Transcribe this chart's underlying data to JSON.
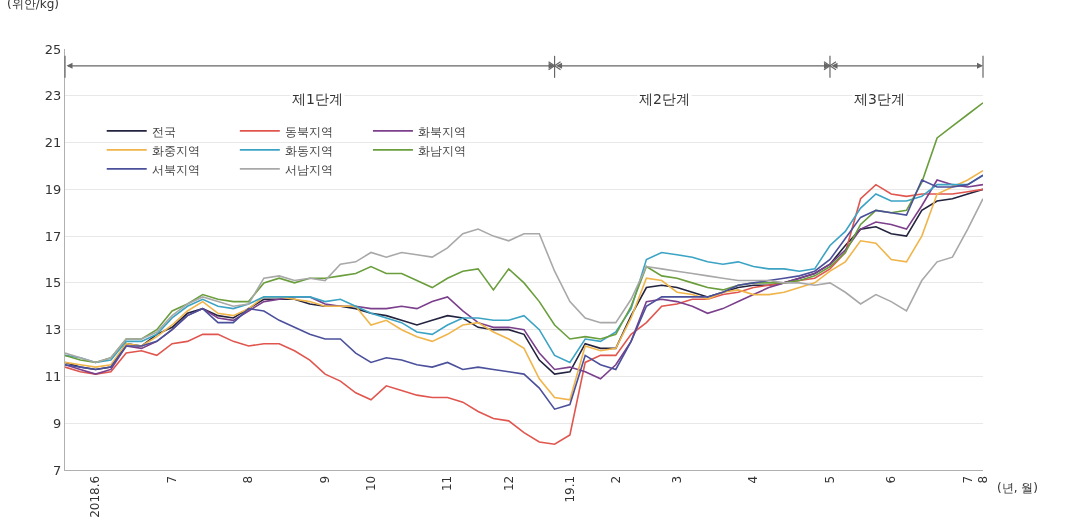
{
  "chart_data": {
    "type": "line",
    "xlabel": "(년, 월)",
    "ylabel": "(위안/kg)",
    "annotations": [
      "제1단계",
      "제2단계",
      "제3단계"
    ],
    "categories": [
      null,
      null,
      "2018.6",
      null,
      null,
      null,
      null,
      "7",
      null,
      null,
      null,
      null,
      "8",
      null,
      null,
      null,
      null,
      "9",
      null,
      null,
      "10",
      null,
      null,
      null,
      null,
      "11",
      null,
      null,
      null,
      "12",
      null,
      null,
      null,
      "19.1",
      null,
      null,
      "2",
      null,
      null,
      null,
      "3",
      null,
      null,
      null,
      null,
      "4",
      null,
      null,
      null,
      null,
      "5",
      null,
      null,
      null,
      "6",
      null,
      null,
      null,
      null,
      "7",
      "8"
    ],
    "series": [
      {
        "name": "전국",
        "color": "#23233f",
        "values": [
          11.6,
          11.4,
          11.3,
          11.4,
          12.4,
          12.3,
          12.8,
          13.1,
          13.7,
          13.9,
          13.6,
          13.5,
          13.9,
          14.3,
          14.3,
          14.3,
          14.1,
          14.0,
          14.0,
          13.9,
          13.7,
          13.6,
          13.4,
          13.2,
          13.4,
          13.6,
          13.5,
          13.1,
          13.0,
          13.0,
          12.8,
          11.7,
          11.1,
          11.2,
          12.4,
          12.2,
          12.2,
          13.6,
          14.8,
          14.9,
          14.8,
          14.6,
          14.4,
          14.6,
          14.8,
          14.9,
          14.9,
          15.0,
          15.2,
          15.4,
          15.8,
          16.6,
          17.3,
          17.4,
          17.1,
          17.0,
          18.1,
          18.5,
          18.6,
          18.8,
          19.0
        ]
      },
      {
        "name": "동북지역",
        "color": "#e0564f",
        "values": [
          11.4,
          11.2,
          11.1,
          11.2,
          12.0,
          12.1,
          11.9,
          12.4,
          12.5,
          12.8,
          12.8,
          12.5,
          12.3,
          12.4,
          12.4,
          12.1,
          11.7,
          11.1,
          10.8,
          10.3,
          10.0,
          10.6,
          10.4,
          10.2,
          10.1,
          10.1,
          9.9,
          9.5,
          9.2,
          9.1,
          8.6,
          8.2,
          8.1,
          8.5,
          11.6,
          11.9,
          11.9,
          12.8,
          13.3,
          14.0,
          14.1,
          14.3,
          14.3,
          14.5,
          14.6,
          14.8,
          14.9,
          15.0,
          15.1,
          15.2,
          15.6,
          16.3,
          18.6,
          19.2,
          18.8,
          18.7,
          18.8,
          18.8,
          18.8,
          18.9,
          19.0
        ]
      },
      {
        "name": "화북지역",
        "color": "#7b3f8c",
        "values": [
          11.5,
          11.3,
          11.1,
          11.3,
          12.3,
          12.2,
          12.5,
          13.0,
          13.6,
          13.9,
          13.5,
          13.4,
          13.8,
          14.2,
          14.3,
          14.4,
          14.4,
          14.1,
          14.0,
          14.0,
          13.9,
          13.9,
          14.0,
          13.9,
          14.2,
          14.4,
          13.8,
          13.3,
          13.1,
          13.1,
          13.0,
          12.0,
          11.3,
          11.4,
          11.2,
          10.9,
          11.5,
          12.5,
          14.2,
          14.3,
          14.2,
          14.0,
          13.7,
          13.9,
          14.2,
          14.5,
          14.8,
          15.0,
          15.2,
          15.4,
          15.8,
          16.4,
          17.3,
          17.6,
          17.5,
          17.3,
          18.3,
          19.4,
          19.2,
          19.1,
          19.2
        ]
      },
      {
        "name": "화중지역",
        "color": "#f0b54a",
        "values": [
          11.6,
          11.5,
          11.4,
          11.5,
          12.4,
          12.3,
          12.7,
          13.2,
          13.8,
          14.2,
          13.7,
          13.6,
          13.9,
          14.4,
          14.4,
          14.3,
          14.2,
          14.0,
          14.0,
          14.0,
          13.2,
          13.4,
          13.0,
          12.7,
          12.5,
          12.8,
          13.2,
          13.3,
          12.9,
          12.6,
          12.2,
          10.9,
          10.1,
          10.0,
          12.3,
          12.1,
          12.2,
          13.5,
          15.2,
          15.1,
          14.6,
          14.5,
          14.3,
          14.6,
          14.7,
          14.5,
          14.5,
          14.6,
          14.8,
          15.0,
          15.5,
          15.9,
          16.8,
          16.7,
          16.0,
          15.9,
          17.0,
          18.8,
          19.1,
          19.4,
          19.8
        ]
      },
      {
        "name": "화동지역",
        "color": "#3ba3c4",
        "values": [
          11.9,
          11.8,
          11.6,
          11.7,
          12.5,
          12.5,
          12.8,
          13.5,
          14.0,
          14.3,
          14.0,
          13.9,
          14.1,
          14.4,
          14.4,
          14.4,
          14.4,
          14.2,
          14.3,
          14.0,
          13.7,
          13.5,
          13.3,
          12.9,
          12.8,
          13.2,
          13.5,
          13.5,
          13.4,
          13.4,
          13.6,
          13.0,
          11.9,
          11.6,
          12.6,
          12.5,
          12.9,
          13.9,
          16.0,
          16.3,
          16.2,
          16.1,
          15.9,
          15.8,
          15.9,
          15.7,
          15.6,
          15.6,
          15.5,
          15.6,
          16.6,
          17.2,
          18.2,
          18.8,
          18.5,
          18.5,
          18.7,
          19.2,
          19.2,
          19.2,
          19.6
        ]
      },
      {
        "name": "화남지역",
        "color": "#6a9e3c",
        "values": [
          11.9,
          11.7,
          11.6,
          11.8,
          12.6,
          12.6,
          13.0,
          13.8,
          14.1,
          14.5,
          14.3,
          14.2,
          14.2,
          15.0,
          15.2,
          15.0,
          15.2,
          15.2,
          15.3,
          15.4,
          15.7,
          15.4,
          15.4,
          15.1,
          14.8,
          15.2,
          15.5,
          15.6,
          14.7,
          15.6,
          15.0,
          14.2,
          13.2,
          12.6,
          12.7,
          12.6,
          12.8,
          14.0,
          15.7,
          15.3,
          15.2,
          15.0,
          14.8,
          14.7,
          14.9,
          15.0,
          15.0,
          15.0,
          15.1,
          15.3,
          15.7,
          16.3,
          17.5,
          18.1,
          18.0,
          18.1,
          19.3,
          21.2,
          21.7,
          22.2,
          22.7
        ]
      },
      {
        "name": "서북지역",
        "color": "#4b509b",
        "values": [
          11.5,
          11.4,
          11.3,
          11.4,
          12.3,
          12.3,
          12.5,
          13.0,
          13.6,
          13.9,
          13.3,
          13.3,
          13.9,
          13.8,
          13.4,
          13.1,
          12.8,
          12.6,
          12.6,
          12.0,
          11.6,
          11.8,
          11.7,
          11.5,
          11.4,
          11.6,
          11.3,
          11.4,
          11.3,
          11.2,
          11.1,
          10.5,
          9.6,
          9.8,
          11.9,
          11.5,
          11.3,
          12.5,
          14.0,
          14.4,
          14.4,
          14.4,
          14.4,
          14.6,
          14.9,
          15.0,
          15.1,
          15.2,
          15.3,
          15.5,
          16.0,
          16.9,
          17.8,
          18.1,
          18.0,
          17.9,
          19.4,
          19.1,
          19.1,
          19.2,
          19.6
        ]
      },
      {
        "name": "서남지역",
        "color": "#a8a8a8",
        "values": [
          12.0,
          11.8,
          11.6,
          11.8,
          12.6,
          12.6,
          12.9,
          13.6,
          14.1,
          14.4,
          14.2,
          14.0,
          14.1,
          15.2,
          15.3,
          15.1,
          15.2,
          15.1,
          15.8,
          15.9,
          16.3,
          16.1,
          16.3,
          16.2,
          16.1,
          16.5,
          17.1,
          17.3,
          17.0,
          16.8,
          17.1,
          17.1,
          15.5,
          14.2,
          13.5,
          13.3,
          13.3,
          14.3,
          15.7,
          15.6,
          15.5,
          15.4,
          15.3,
          15.2,
          15.1,
          15.1,
          15.1,
          15.0,
          15.0,
          14.9,
          15.0,
          14.6,
          14.1,
          14.5,
          14.2,
          13.8,
          15.1,
          15.9,
          16.1,
          17.3,
          18.6
        ]
      }
    ],
    "ylim": [
      7,
      25
    ],
    "yticks": [
      7,
      9,
      11,
      13,
      15,
      17,
      19,
      21,
      23,
      25
    ],
    "grid": "y",
    "legend": "top left"
  }
}
